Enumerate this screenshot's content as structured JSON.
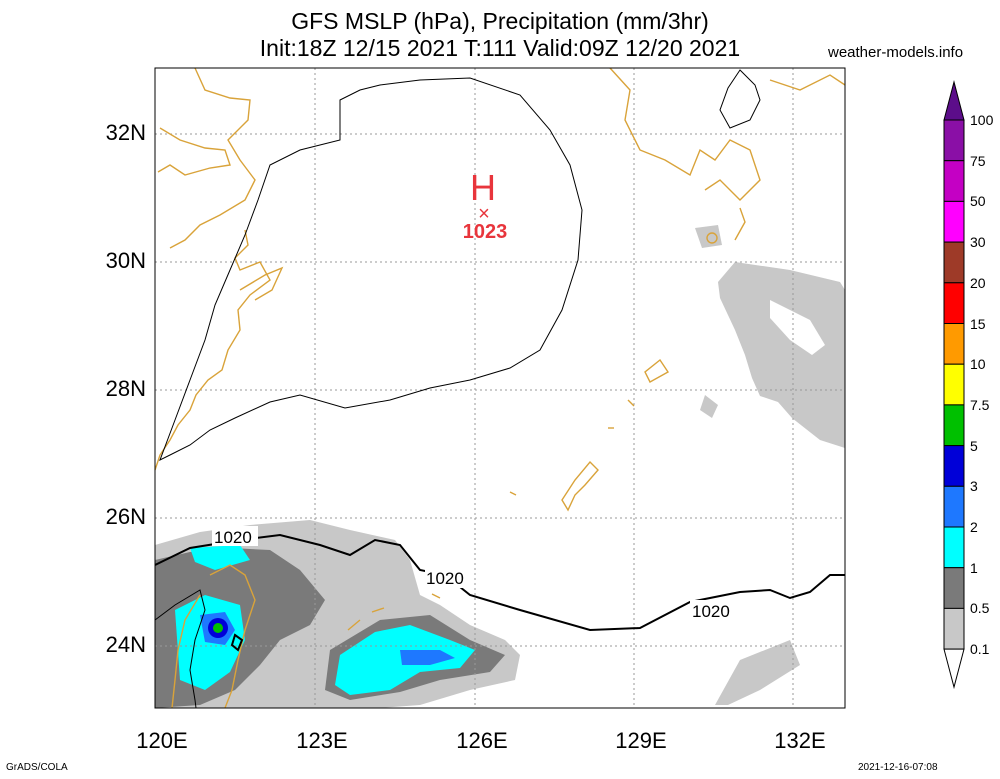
{
  "title": {
    "line1": "GFS MSLP (hPa), Precipitation (mm/3hr)",
    "line2": "Init:18Z 12/15 2021 T:111 Valid:09Z 12/20 2021",
    "site": "weather-models.info"
  },
  "map": {
    "lat_labels": [
      "32N",
      "30N",
      "28N",
      "26N",
      "24N"
    ],
    "lon_labels": [
      "120E",
      "123E",
      "126E",
      "129E",
      "132E"
    ],
    "high": {
      "symbol": "H",
      "marker": "×",
      "pressure": "1023"
    },
    "isobar_labels": [
      "1020",
      "1020",
      "1020"
    ],
    "colors": {
      "coast": "#d9a33a",
      "isobar": "#000000",
      "high": "#e8353c",
      "grid": "#999999"
    }
  },
  "colorbar": {
    "labels": [
      "100",
      "75",
      "50",
      "30",
      "20",
      "15",
      "10",
      "7.5",
      "5",
      "3",
      "2",
      "1",
      "0.5",
      "0.1"
    ],
    "colors": [
      "#5c0d8a",
      "#8a0fa6",
      "#c400c4",
      "#ff00ff",
      "#9e3a28",
      "#ff0000",
      "#ff9a00",
      "#ffff00",
      "#00c000",
      "#0000d8",
      "#1e78ff",
      "#00ffff",
      "#7a7a7a",
      "#c8c8c8"
    ]
  },
  "footer": {
    "left": "GrADS/COLA",
    "right": "2021-12-16-07:08"
  }
}
